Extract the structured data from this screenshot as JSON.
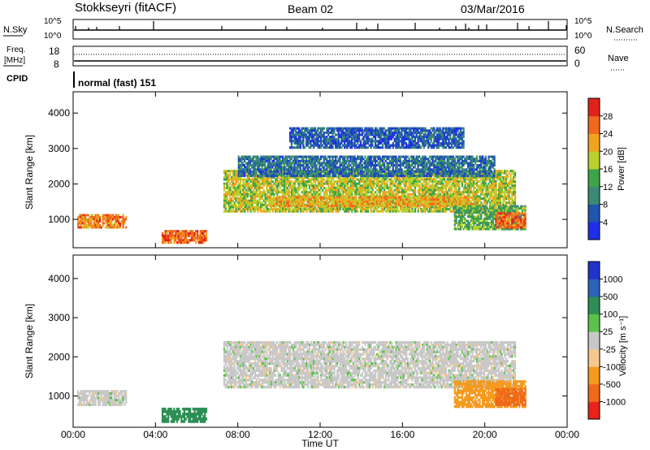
{
  "header": {
    "station": "Stokkseyri (fitACF)",
    "beam": "Beam 02",
    "date": "03/Mar/2016"
  },
  "nsky_panel": {
    "left_label": "N.Sky",
    "left_ticks": [
      "10^5",
      "10^0"
    ],
    "right_label": "N.Search",
    "right_ticks": [
      "10^5",
      "10^0"
    ]
  },
  "freq_panel": {
    "left_label_line1": "Freq.",
    "left_label_line2": "[MHz]",
    "left_ticks": [
      "18",
      "8"
    ],
    "right_label": "Nave",
    "right_ticks": [
      "60",
      "0"
    ]
  },
  "cpid_panel": {
    "label": "CPID",
    "mode": "normal (fast) 151"
  },
  "x_axis": {
    "label": "Time UT",
    "ticks": [
      "00:00",
      "04:00",
      "08:00",
      "12:00",
      "16:00",
      "20:00",
      "00:00"
    ]
  },
  "colors": {
    "power_scale": [
      "#1f2ee8",
      "#2055b0",
      "#3a8a76",
      "#3da44a",
      "#b9d12a",
      "#f2a31e",
      "#f0681e",
      "#e0231a"
    ],
    "velocity_scale": [
      "#e8231a",
      "#f06a1a",
      "#f59a1e",
      "#f5c98e",
      "#c8c8c8",
      "#5cc34a",
      "#2d8f55",
      "#2a63b8",
      "#2133c9"
    ]
  },
  "chart_data": [
    {
      "type": "heatmap",
      "title": "Power",
      "xlabel": "Time UT",
      "ylabel": "Slant Range [km]",
      "xlim": [
        0,
        24
      ],
      "ylim": [
        200,
        4600
      ],
      "y_ticks": [
        "1000",
        "2000",
        "3000",
        "4000"
      ],
      "colorbar_label": "Power [dB]",
      "colorbar_ticks": [
        "4",
        "8",
        "12",
        "16",
        "20",
        "24",
        "28"
      ],
      "regions": [
        {
          "t": [
            0.2,
            2.6
          ],
          "range": [
            750,
            1150
          ],
          "value": 24
        },
        {
          "t": [
            4.3,
            6.5
          ],
          "range": [
            320,
            700
          ],
          "value": 26
        },
        {
          "t": [
            7.3,
            21.5
          ],
          "range": [
            1200,
            2400
          ],
          "value": 18
        },
        {
          "t": [
            9.5,
            19.5
          ],
          "range": [
            1350,
            1650
          ],
          "value": 22
        },
        {
          "t": [
            8.0,
            20.5
          ],
          "range": [
            2200,
            2800
          ],
          "value": 8
        },
        {
          "t": [
            10.5,
            19.0
          ],
          "range": [
            3000,
            3600
          ],
          "value": 6
        },
        {
          "t": [
            18.5,
            22.0
          ],
          "range": [
            700,
            1400
          ],
          "value": 14
        },
        {
          "t": [
            20.5,
            22.0
          ],
          "range": [
            750,
            1200
          ],
          "value": 26
        }
      ]
    },
    {
      "type": "heatmap",
      "title": "Velocity",
      "xlabel": "Time UT",
      "ylabel": "Slant Range [km]",
      "xlim": [
        0,
        24
      ],
      "ylim": [
        200,
        4600
      ],
      "y_ticks": [
        "1000",
        "2000",
        "3000",
        "4000"
      ],
      "colorbar_label": "Velocity [m s⁻¹]",
      "colorbar_ticks": [
        "1000",
        "500",
        "100",
        "25",
        "-25",
        "-100",
        "-500",
        "-1000"
      ],
      "regions": [
        {
          "t": [
            0.2,
            2.6
          ],
          "range": [
            750,
            1150
          ],
          "value": 0
        },
        {
          "t": [
            4.3,
            6.5
          ],
          "range": [
            320,
            700
          ],
          "value": 200
        },
        {
          "t": [
            7.3,
            21.5
          ],
          "range": [
            1200,
            2400
          ],
          "value": 0
        },
        {
          "t": [
            18.5,
            22.0
          ],
          "range": [
            700,
            1400
          ],
          "value": -300
        },
        {
          "t": [
            20.5,
            22.0
          ],
          "range": [
            750,
            1200
          ],
          "value": -600
        }
      ]
    }
  ]
}
